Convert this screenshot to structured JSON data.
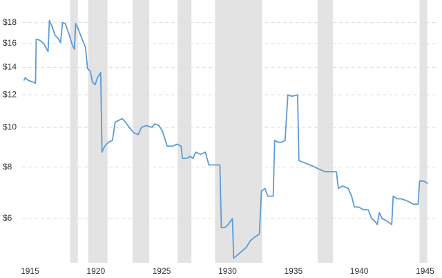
{
  "chart_data": {
    "type": "line",
    "log_y": true,
    "grid": true,
    "xlim": [
      1914.4,
      1945.5
    ],
    "ylim": [
      4.68,
      18.9
    ],
    "xticks": [
      1915,
      1920,
      1925,
      1930,
      1935,
      1940,
      1945
    ],
    "yticks": [
      {
        "value": 6,
        "label": "$6"
      },
      {
        "value": 8,
        "label": "$8"
      },
      {
        "value": 10,
        "label": "$10"
      },
      {
        "value": 12,
        "label": "$12"
      },
      {
        "value": 14,
        "label": "$14"
      },
      {
        "value": 16,
        "label": "$16"
      },
      {
        "value": 18,
        "label": "$18"
      }
    ],
    "shaded_ranges": [
      [
        1918.05,
        1918.63
      ],
      [
        1919.42,
        1920.89
      ],
      [
        1922.79,
        1924.05
      ],
      [
        1926.21,
        1927.26
      ],
      [
        1929.05,
        1932.63
      ],
      [
        1936.84,
        1938.0
      ],
      [
        1944.58,
        1945.16
      ]
    ],
    "shade_color": "#e3e3e3",
    "series": [
      {
        "color": "#5b9bd5",
        "x": [
          1914.53,
          1914.63,
          1914.89,
          1915.21,
          1915.42,
          1915.47,
          1915.74,
          1916.05,
          1916.37,
          1916.47,
          1916.68,
          1916.89,
          1917.16,
          1917.32,
          1917.47,
          1917.68,
          1917.95,
          1918.21,
          1918.37,
          1918.47,
          1918.68,
          1918.95,
          1919.21,
          1919.37,
          1919.58,
          1919.74,
          1919.95,
          1920.11,
          1920.37,
          1920.47,
          1920.68,
          1920.95,
          1921.26,
          1921.47,
          1921.74,
          1922.0,
          1922.26,
          1922.53,
          1922.89,
          1923.21,
          1923.47,
          1923.84,
          1924.26,
          1924.47,
          1924.79,
          1925.05,
          1925.42,
          1925.84,
          1926.16,
          1926.47,
          1926.58,
          1926.89,
          1927.16,
          1927.37,
          1927.58,
          1927.95,
          1928.32,
          1928.58,
          1929.0,
          1929.42,
          1929.53,
          1929.79,
          1930.05,
          1930.37,
          1930.47,
          1930.79,
          1931.11,
          1931.42,
          1931.74,
          1932.05,
          1932.42,
          1932.58,
          1932.84,
          1933.05,
          1933.47,
          1933.58,
          1933.84,
          1934.11,
          1934.37,
          1934.58,
          1934.89,
          1935.32,
          1935.42,
          1935.84,
          1936.26,
          1936.63,
          1937.0,
          1937.42,
          1937.84,
          1938.26,
          1938.42,
          1938.74,
          1939.16,
          1939.42,
          1939.63,
          1939.95,
          1940.32,
          1940.68,
          1940.95,
          1941.21,
          1941.37,
          1941.53,
          1941.74,
          1942.16,
          1942.47,
          1942.58,
          1942.89,
          1943.21,
          1943.74,
          1944.11,
          1944.47,
          1944.58,
          1944.89,
          1945.21
        ],
        "values": [
          13.0,
          13.2,
          13.0,
          12.9,
          12.8,
          16.4,
          16.3,
          16.0,
          15.3,
          18.2,
          17.6,
          16.8,
          16.4,
          16.1,
          18.0,
          17.9,
          16.9,
          15.9,
          15.5,
          17.9,
          17.3,
          16.4,
          15.7,
          13.9,
          13.7,
          12.9,
          12.7,
          13.2,
          13.6,
          8.7,
          9.0,
          9.2,
          9.3,
          10.3,
          10.4,
          10.5,
          10.3,
          10.0,
          9.7,
          9.6,
          10.0,
          10.1,
          10.0,
          10.2,
          10.1,
          9.8,
          9.0,
          9.0,
          9.1,
          9.0,
          8.4,
          8.4,
          8.5,
          8.4,
          8.7,
          8.6,
          8.7,
          8.1,
          8.1,
          8.1,
          5.7,
          5.7,
          5.8,
          6.0,
          4.8,
          4.9,
          5.0,
          5.1,
          5.3,
          5.4,
          5.5,
          7.0,
          7.1,
          6.8,
          6.8,
          9.3,
          9.2,
          9.2,
          9.3,
          12.0,
          11.9,
          12.0,
          8.3,
          8.2,
          8.1,
          8.0,
          7.9,
          7.8,
          7.8,
          7.8,
          7.1,
          7.2,
          7.1,
          6.8,
          6.4,
          6.4,
          6.3,
          6.3,
          6.0,
          5.9,
          5.8,
          6.2,
          6.0,
          5.9,
          5.8,
          6.8,
          6.7,
          6.7,
          6.6,
          6.5,
          6.5,
          7.4,
          7.4,
          7.3
        ]
      }
    ]
  }
}
